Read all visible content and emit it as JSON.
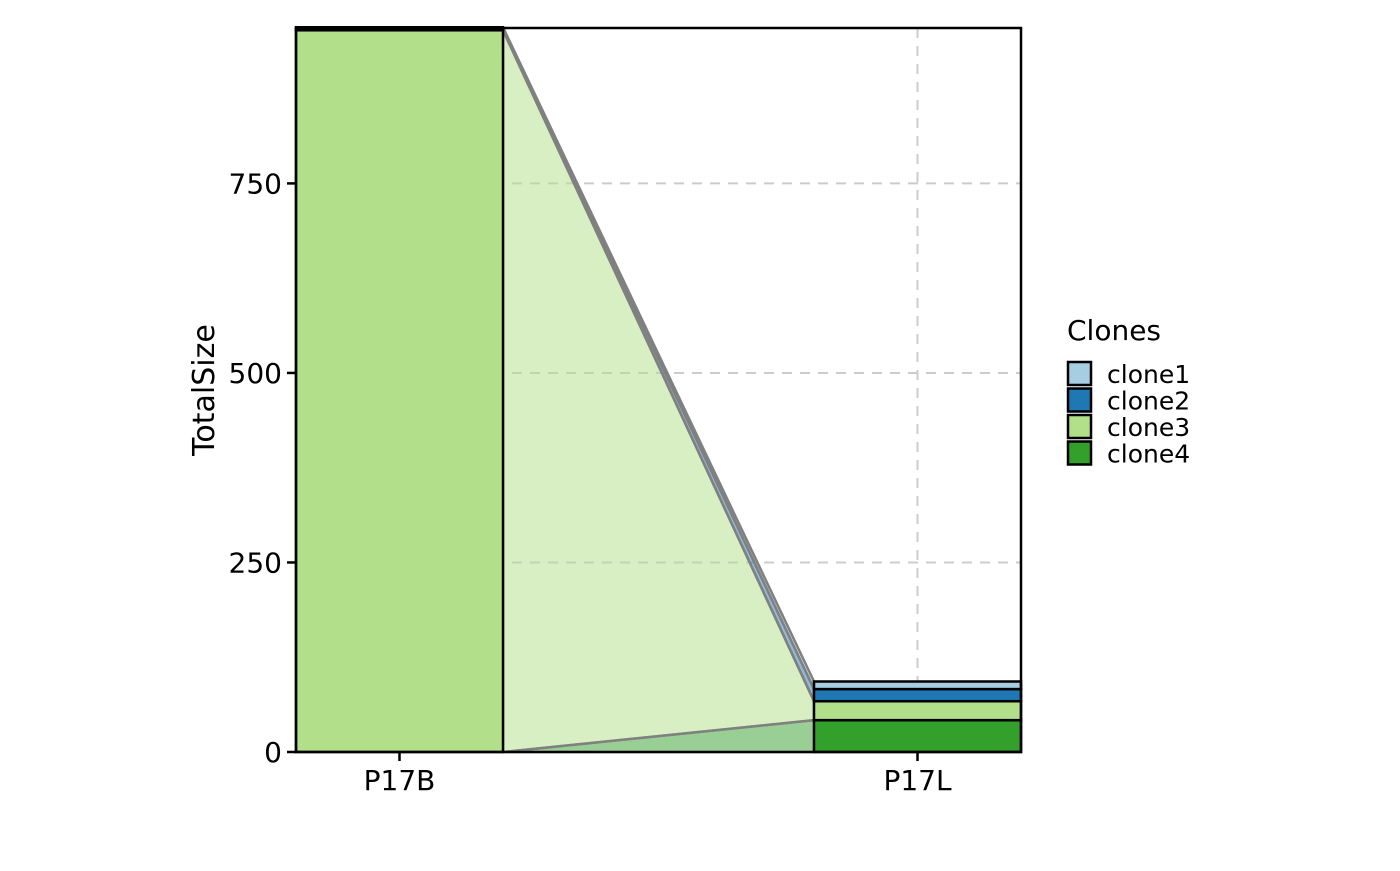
{
  "chart_data": {
    "type": "bar",
    "subtype": "stacked-bar-alluvial",
    "categories": [
      "P17B",
      "P17L"
    ],
    "series": [
      {
        "name": "clone4",
        "values": [
          0,
          42
        ],
        "color": "#33A02C",
        "flow_color": "#33A02C"
      },
      {
        "name": "clone3",
        "values": [
          952,
          25
        ],
        "color": "#B2DF8A",
        "flow_color": "#B2DF8A"
      },
      {
        "name": "clone2",
        "values": [
          2,
          16
        ],
        "color": "#1F78B4",
        "flow_color": "#1F78B4"
      },
      {
        "name": "clone1",
        "values": [
          2,
          10
        ],
        "color": "#A6CEE3",
        "flow_color": "#A6CEE3"
      }
    ],
    "title": "",
    "xlabel": "",
    "ylabel": "TotalSize",
    "ylim": [
      0,
      955
    ],
    "yticks": [
      0,
      250,
      500,
      750
    ],
    "ytick_labels": [
      "0",
      "250",
      "500",
      "750"
    ],
    "grid": "dashed, major",
    "legend": {
      "title": "Clones",
      "position": "right",
      "entries": [
        {
          "name": "clone1",
          "color": "#A6CEE3"
        },
        {
          "name": "clone2",
          "color": "#1F78B4"
        },
        {
          "name": "clone3",
          "color": "#B2DF8A"
        },
        {
          "name": "clone4",
          "color": "#33A02C"
        }
      ]
    }
  }
}
